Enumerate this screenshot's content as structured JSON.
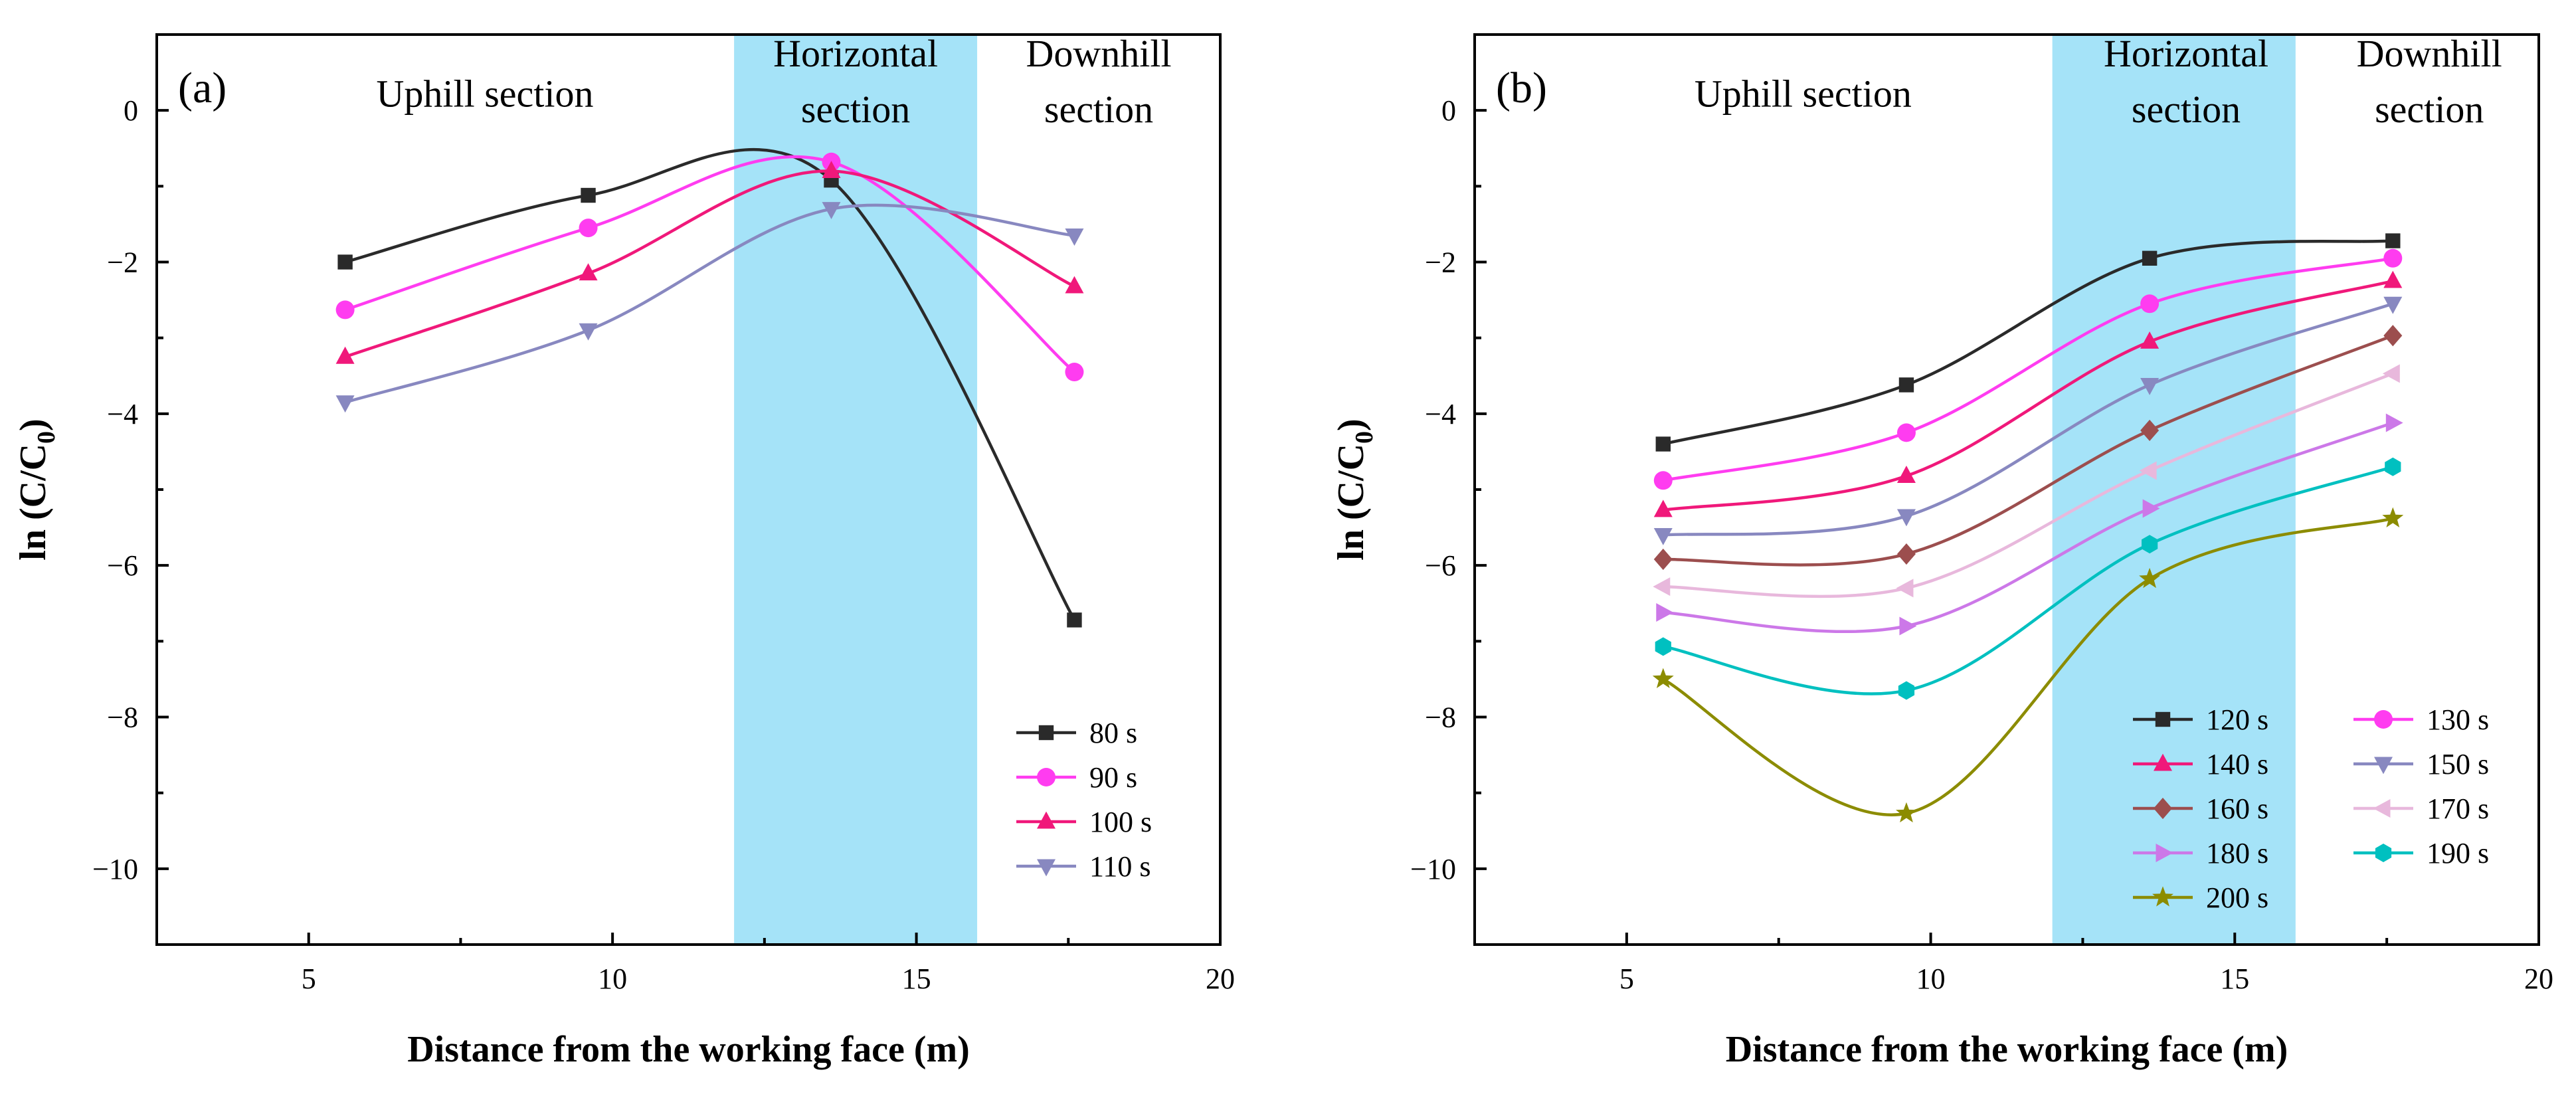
{
  "chart_data": [
    {
      "id": "a",
      "type": "line",
      "panel_label": "(a)",
      "xlabel": "Distance from the working face (m)",
      "ylabel": "ln (C/C0)",
      "ylabel_main": "ln (C/C",
      "ylabel_sub": "0",
      "ylabel_close": ")",
      "xlim": [
        2.5,
        20
      ],
      "ylim": [
        -11,
        1
      ],
      "xticks": [
        5,
        10,
        15,
        20
      ],
      "xtick_labels": [
        "5",
        "10",
        "15",
        "20"
      ],
      "yticks": [
        0,
        -2,
        -4,
        -6,
        -8,
        -10
      ],
      "ytick_labels": [
        "0",
        "−2",
        "−4",
        "−6",
        "−8",
        "−10"
      ],
      "shaded_band": {
        "x": [
          12,
          16
        ],
        "color": "#a5e3f8"
      },
      "regions": [
        {
          "lines": [
            "Uphill section"
          ],
          "x": 7.9,
          "y": 0.05
        },
        {
          "lines": [
            "Horizontal",
            "section"
          ],
          "x": 14.0,
          "y": 0.35
        },
        {
          "lines": [
            "Downhill",
            "section"
          ],
          "x": 18.0,
          "y": 0.35
        }
      ],
      "legend_position": "bottom-right",
      "legend_columns": 1,
      "x": [
        5.6,
        9.6,
        13.6,
        17.6
      ],
      "series": [
        {
          "name": "80 s",
          "color": "#2a2a2a",
          "marker": "square",
          "values": [
            -2.0,
            -1.12,
            -0.92,
            -6.72
          ]
        },
        {
          "name": "90 s",
          "color": "#ff3cf0",
          "marker": "circle",
          "values": [
            -2.63,
            -1.55,
            -0.68,
            -3.45
          ]
        },
        {
          "name": "100 s",
          "color": "#f0187a",
          "marker": "triangle-up",
          "values": [
            -3.25,
            -2.15,
            -0.8,
            -2.32
          ]
        },
        {
          "name": "110 s",
          "color": "#8888c0",
          "marker": "triangle-down",
          "values": [
            -3.85,
            -2.9,
            -1.3,
            -1.65
          ]
        }
      ]
    },
    {
      "id": "b",
      "type": "line",
      "panel_label": "(b)",
      "xlabel": "Distance from the working face (m)",
      "ylabel": "ln (C/C0)",
      "ylabel_main": "ln (C/C",
      "ylabel_sub": "0",
      "ylabel_close": ")",
      "xlim": [
        2.5,
        20
      ],
      "ylim": [
        -11,
        1
      ],
      "xticks": [
        5,
        10,
        15,
        20
      ],
      "xtick_labels": [
        "5",
        "10",
        "15",
        "20"
      ],
      "yticks": [
        0,
        -2,
        -4,
        -6,
        -8,
        -10
      ],
      "ytick_labels": [
        "0",
        "−2",
        "−4",
        "−6",
        "−8",
        "−10"
      ],
      "shaded_band": {
        "x": [
          12,
          16
        ],
        "color": "#a5e3f8"
      },
      "regions": [
        {
          "lines": [
            "Uphill section"
          ],
          "x": 7.9,
          "y": 0.05
        },
        {
          "lines": [
            "Horizontal",
            "section"
          ],
          "x": 14.2,
          "y": 0.35
        },
        {
          "lines": [
            "Downhill",
            "section"
          ],
          "x": 18.2,
          "y": 0.35
        }
      ],
      "legend_position": "bottom-right",
      "legend_columns": 2,
      "x": [
        5.6,
        9.6,
        13.6,
        17.6
      ],
      "series": [
        {
          "name": "120 s",
          "color": "#2a2a2a",
          "marker": "square",
          "values": [
            -4.4,
            -3.62,
            -1.95,
            -1.72
          ]
        },
        {
          "name": "130 s",
          "color": "#ff3cf0",
          "marker": "circle",
          "values": [
            -4.88,
            -4.25,
            -2.55,
            -1.95
          ]
        },
        {
          "name": "140 s",
          "color": "#f0187a",
          "marker": "triangle-up",
          "values": [
            -5.27,
            -4.82,
            -3.05,
            -2.25
          ]
        },
        {
          "name": "150 s",
          "color": "#8888c0",
          "marker": "triangle-down",
          "values": [
            -5.6,
            -5.35,
            -3.62,
            -2.55
          ]
        },
        {
          "name": "160 s",
          "color": "#9c4e4e",
          "marker": "diamond",
          "values": [
            -5.92,
            -5.85,
            -4.22,
            -2.97
          ]
        },
        {
          "name": "170 s",
          "color": "#e8b8dc",
          "marker": "triangle-left",
          "values": [
            -6.28,
            -6.3,
            -4.75,
            -3.47
          ]
        },
        {
          "name": "180 s",
          "color": "#cc78e8",
          "marker": "triangle-right",
          "values": [
            -6.62,
            -6.8,
            -5.25,
            -4.12
          ]
        },
        {
          "name": "190 s",
          "color": "#00c0c0",
          "marker": "hexagon",
          "values": [
            -7.07,
            -7.65,
            -5.72,
            -4.7
          ]
        },
        {
          "name": "200 s",
          "color": "#8c8c00",
          "marker": "star",
          "values": [
            -7.5,
            -9.27,
            -6.18,
            -5.38
          ]
        }
      ]
    }
  ]
}
